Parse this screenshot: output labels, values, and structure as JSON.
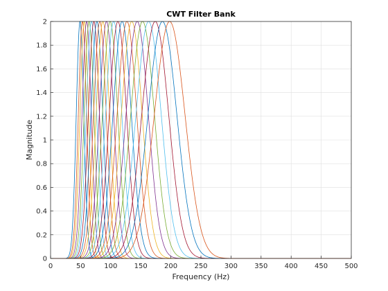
{
  "chart_data": {
    "type": "line",
    "title": "CWT Filter Bank",
    "xlabel": "Frequency (Hz)",
    "ylabel": "Magnitude",
    "xlim": [
      0,
      500
    ],
    "ylim": [
      0,
      2
    ],
    "xticks": [
      0,
      50,
      100,
      150,
      200,
      250,
      300,
      350,
      400,
      450,
      500
    ],
    "yticks": [
      0,
      0.2,
      0.4,
      0.6,
      0.8,
      1,
      1.2,
      1.4,
      1.6,
      1.8,
      2
    ],
    "ytick_labels": [
      "0",
      "0.2",
      "0.4",
      "0.6",
      "0.8",
      "1",
      "1.2",
      "1.4",
      "1.6",
      "1.8",
      "2"
    ],
    "grid": true,
    "box": true,
    "filter_peaks_hz": [
      49,
      53,
      56,
      60,
      64,
      68,
      72,
      77,
      82,
      87,
      93,
      99,
      105,
      112,
      119,
      127,
      135,
      144,
      153,
      163,
      174,
      186,
      198
    ],
    "peak_magnitude": 2,
    "series_colors": [
      "#0072BD",
      "#D95319",
      "#EDB120",
      "#7E2F8E",
      "#77AC30",
      "#4DBEEE",
      "#A2142F"
    ]
  }
}
